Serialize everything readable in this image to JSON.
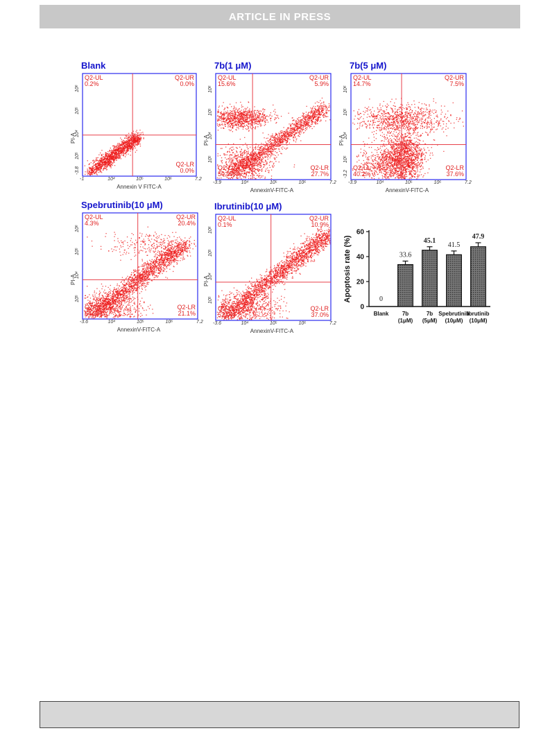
{
  "header": {
    "text": "ARTICLE IN PRESS"
  },
  "panels": [
    {
      "title": "Blank",
      "xlabel": "Annexin V FITC-A",
      "ylabel": "PI-A",
      "q_ul": [
        "Q2-UL",
        "0.2%"
      ],
      "q_ur": [
        "Q2-UR",
        "0.0%"
      ],
      "q_lr": [
        "Q2-LR",
        "0.0%"
      ],
      "q_ll": [
        "",
        ""
      ],
      "x_min": "-1",
      "x_max": "7.2",
      "ticks": [
        "10⁴",
        "10⁵",
        "10⁶"
      ],
      "y_ticks": [
        "10⁶",
        "10⁵",
        "10⁴",
        "10⁵"
      ],
      "y_min": "-3.8"
    },
    {
      "title": "7b(1 μM)",
      "xlabel": "AnnexinV-FITC-A",
      "ylabel": "PI-A",
      "q_ul": [
        "Q2-UL",
        "15.6%"
      ],
      "q_ur": [
        "Q2-UR",
        "5.9%"
      ],
      "q_lr": [
        "Q2-LR",
        "27.7%"
      ],
      "q_ll": [
        "Q2-LL",
        "50.9%"
      ],
      "x_min": "-3.9",
      "x_max": "7.2",
      "ticks": [
        "10⁴",
        "10⁵",
        "10⁶"
      ],
      "y_ticks": [
        "10⁶",
        "10⁵",
        "10⁴",
        "10⁵"
      ],
      "y_min": ""
    },
    {
      "title": "7b(5 μM)",
      "xlabel": "AnnexinV-FITC-A",
      "ylabel": "PI-A",
      "q_ul": [
        "Q2-UL",
        "14.7%"
      ],
      "q_ur": [
        "Q2-UR",
        "7.5%"
      ],
      "q_lr": [
        "Q2-LR",
        "37.6%"
      ],
      "q_ll": [
        "Q2-LL",
        "40.2%"
      ],
      "x_min": "-3.9",
      "x_max": "7.2",
      "ticks": [
        "10⁴",
        "10⁵",
        "10⁶"
      ],
      "y_ticks": [
        "10⁶",
        "10⁵",
        "10⁴",
        "10⁵"
      ],
      "y_min": "-3.2"
    },
    {
      "title": "Spebrutinib(10 μM)",
      "xlabel": "AnnexinV-FITC-A",
      "ylabel": "PI-A",
      "q_ul": [
        "Q2-UL",
        "4.3%"
      ],
      "q_ur": [
        "Q2-UR",
        "20.4%"
      ],
      "q_lr": [
        "Q2-LR",
        "21.1%"
      ],
      "q_ll": [
        "Q2-LL",
        "54.2%"
      ],
      "x_min": "-3.6",
      "x_max": "7.2",
      "ticks": [
        "10⁴",
        "10⁵",
        "10⁶"
      ],
      "y_ticks": [
        "10⁶",
        "10⁵",
        "10⁴",
        "10⁵"
      ],
      "y_min": ""
    },
    {
      "title": "Ibrutinib(10 μM)",
      "xlabel": "AnnexinV-FITC-A",
      "ylabel": "PI-A",
      "q_ul": [
        "Q2-UL",
        "0.1%"
      ],
      "q_ur": [
        "Q2-UR",
        "10.9%"
      ],
      "q_lr": [
        "Q2-LR",
        "37.0%"
      ],
      "q_ll": [
        "Q2-LL",
        "52.0%"
      ],
      "x_min": "-3.6",
      "x_max": "7.2",
      "ticks": [
        "10⁴",
        "10⁵",
        "10⁶"
      ],
      "y_ticks": [
        "10⁶",
        "10⁵",
        "10⁴",
        "10⁵"
      ],
      "y_min": ""
    }
  ],
  "colors": {
    "title": "#1515cc",
    "frame": "#2a2aee",
    "dots": "#ee1c1c",
    "gate": "#e8404a",
    "bar_fill": "#555555"
  },
  "chart_data": {
    "type": "bar",
    "categories": [
      [
        "Blank"
      ],
      [
        "7b",
        "(1μM)"
      ],
      [
        "7b",
        "(5μM)"
      ],
      [
        "Spebrutinib",
        "(10μM)"
      ],
      [
        "Ibrutinib",
        "(10μM)"
      ]
    ],
    "values": [
      0,
      33.6,
      45.1,
      41.5,
      47.9
    ],
    "value_labels": [
      "0",
      "33.6",
      "45.1",
      "41.5",
      "47.9"
    ],
    "errors": [
      0,
      2.8,
      2.8,
      3.0,
      3.2
    ],
    "ylabel": "Apoptosis rate (%)",
    "ylim": [
      0,
      60
    ],
    "yticks": [
      0,
      20,
      40,
      60
    ],
    "grid": false
  }
}
